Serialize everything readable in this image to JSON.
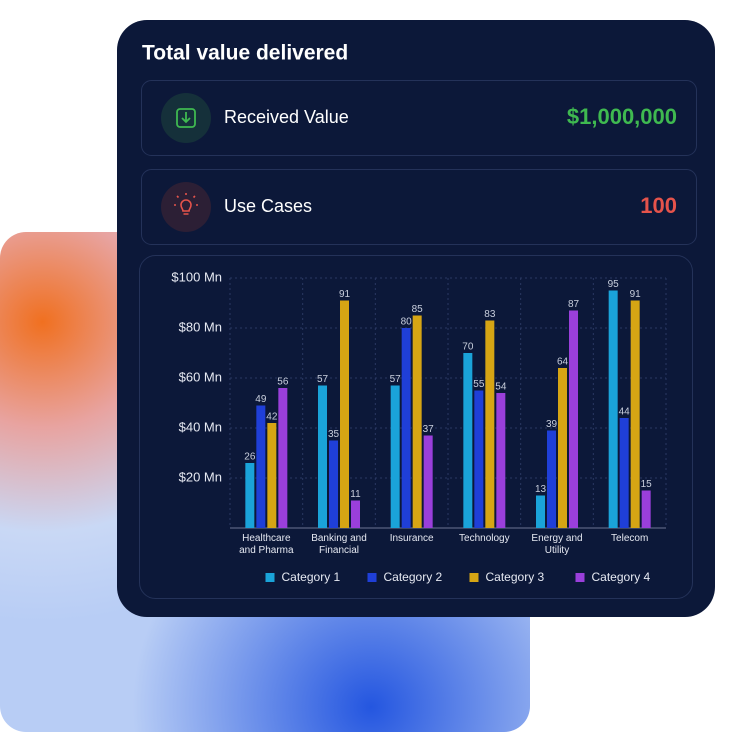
{
  "header": {
    "title": "Total value delivered"
  },
  "kpis": [
    {
      "label": "Received Value",
      "value": "$1,000,000",
      "color": "#3fb950"
    },
    {
      "label": "Use Cases",
      "value": "100",
      "color": "#e5534b"
    }
  ],
  "chart_data": {
    "type": "bar",
    "categories": [
      "Healthcare and Pharma",
      "Banking and Financial",
      "Insurance",
      "Technology",
      "Energy and Utility",
      "Telecom"
    ],
    "series": [
      {
        "name": "Category 1",
        "color": "#1aa3d9",
        "values": [
          26,
          57,
          57,
          70,
          13,
          95
        ]
      },
      {
        "name": "Category 2",
        "color": "#1f3fd8",
        "values": [
          49,
          35,
          80,
          55,
          39,
          44
        ]
      },
      {
        "name": "Category 3",
        "color": "#d6a514",
        "values": [
          42,
          91,
          85,
          83,
          64,
          91
        ]
      },
      {
        "name": "Category 4",
        "color": "#9a3fdb",
        "values": [
          56,
          11,
          37,
          54,
          87,
          15
        ]
      }
    ],
    "ylim": [
      0,
      100
    ],
    "yticks": [
      {
        "value": 20,
        "label": "$20 Mn"
      },
      {
        "value": 40,
        "label": "$40 Mn"
      },
      {
        "value": 60,
        "label": "$60 Mn"
      },
      {
        "value": 80,
        "label": "$80 Mn"
      },
      {
        "value": 100,
        "label": "$100 Mn"
      }
    ],
    "grid": true,
    "legend": "bottom"
  }
}
